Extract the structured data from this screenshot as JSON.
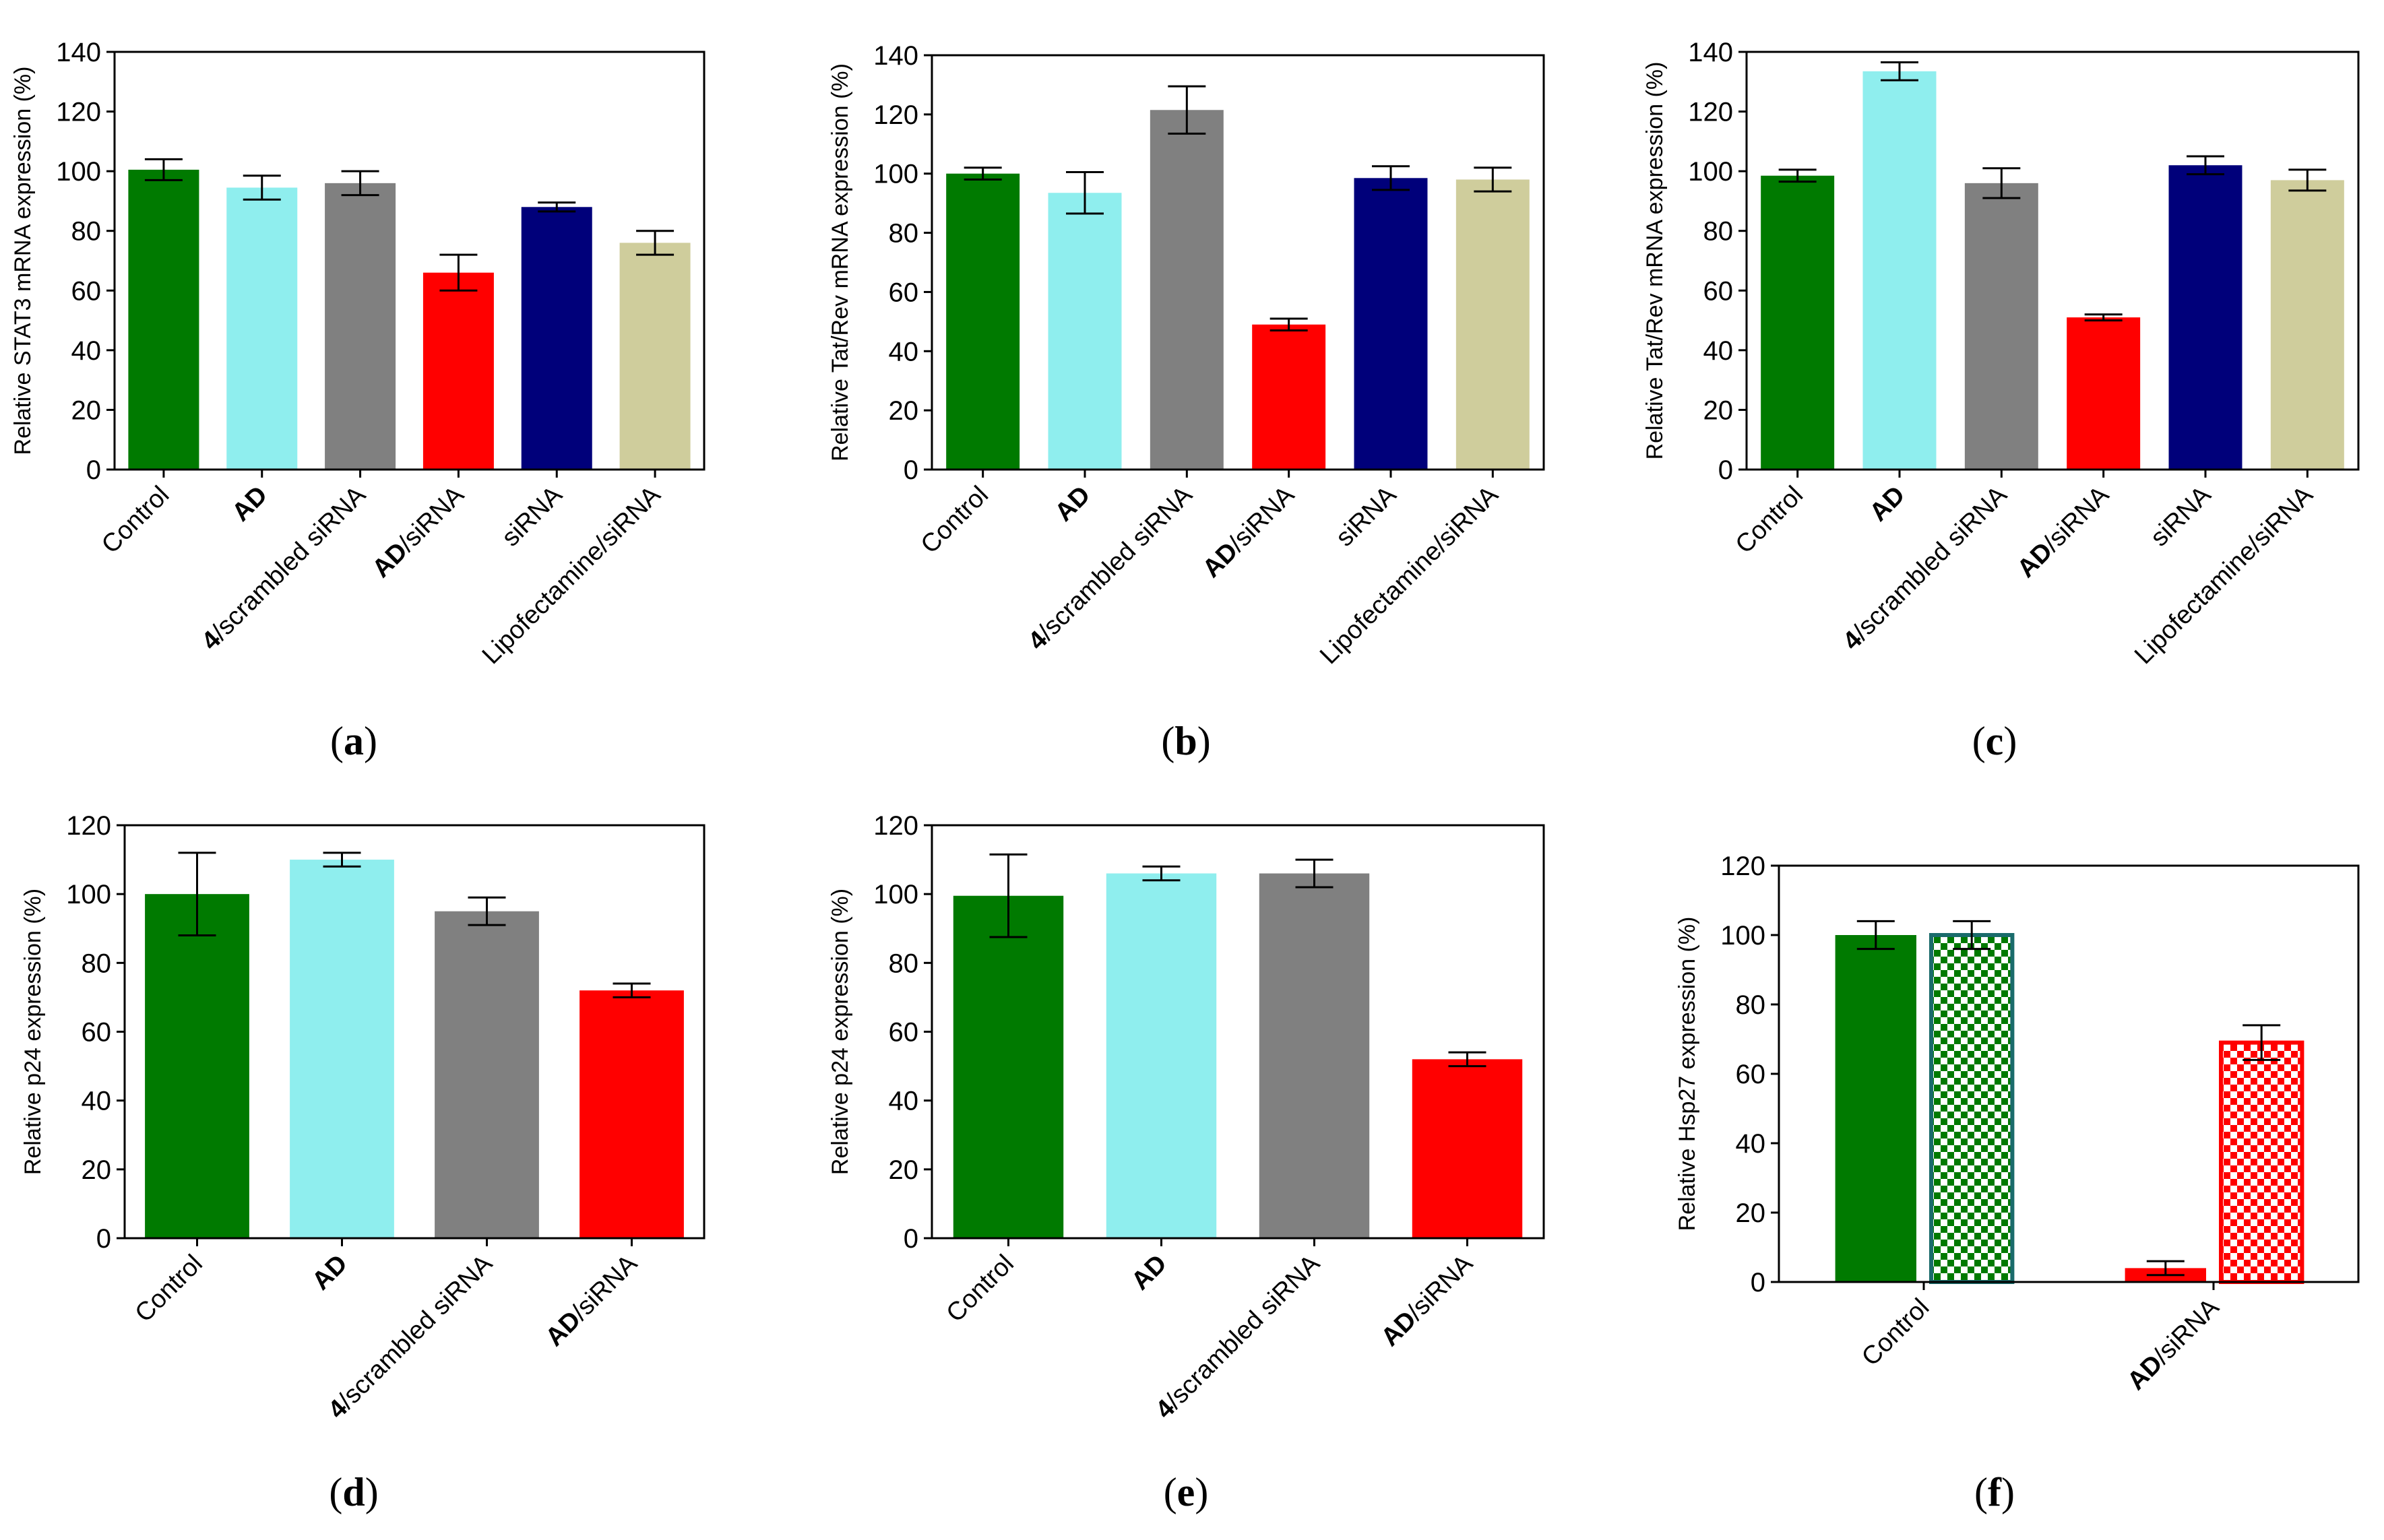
{
  "chart_data": [
    {
      "panel": "a",
      "type": "bar",
      "ylabel": "Relative STAT3 mRNA expression (%)",
      "ylim": [
        0,
        140
      ],
      "yticks": [
        0,
        20,
        40,
        60,
        80,
        100,
        120,
        140
      ],
      "categories": [
        {
          "bold": "",
          "text": "Control"
        },
        {
          "bold": "AD",
          "text": ""
        },
        {
          "bold": "4",
          "text": "/scrambled siRNA"
        },
        {
          "bold": "AD",
          "text": "/siRNA"
        },
        {
          "bold": "",
          "text": "siRNA"
        },
        {
          "bold": "",
          "text": "Lipofectamine/siRNA"
        }
      ],
      "values": [
        100.5,
        94.5,
        96,
        66,
        88,
        76
      ],
      "errors": [
        3.5,
        4,
        4,
        6,
        1.5,
        4
      ],
      "colors": [
        "#007a00",
        "#8feeee",
        "#808080",
        "#ff0000",
        "#00007a",
        "#cfcd9c"
      ],
      "patterns": [
        "solid",
        "solid",
        "solid",
        "solid",
        "solid",
        "solid"
      ],
      "label_prefix": "(",
      "label": "a",
      "label_suffix": ")"
    },
    {
      "panel": "b",
      "type": "bar",
      "ylabel": "Relative Tat/Rev mRNA expression (%)",
      "ylim": [
        0,
        140
      ],
      "yticks": [
        0,
        20,
        40,
        60,
        80,
        100,
        120,
        140
      ],
      "categories": [
        {
          "bold": "",
          "text": "Control"
        },
        {
          "bold": "AD",
          "text": ""
        },
        {
          "bold": "4",
          "text": "/scrambled siRNA"
        },
        {
          "bold": "AD",
          "text": "/siRNA"
        },
        {
          "bold": "",
          "text": "siRNA"
        },
        {
          "bold": "",
          "text": "Lipofectamine/siRNA"
        }
      ],
      "values": [
        100,
        93.5,
        121.5,
        49,
        98.5,
        98
      ],
      "errors": [
        2,
        7,
        8,
        2,
        4,
        4
      ],
      "colors": [
        "#007a00",
        "#8feeee",
        "#808080",
        "#ff0000",
        "#00007a",
        "#cfcd9c"
      ],
      "patterns": [
        "solid",
        "solid",
        "solid",
        "solid",
        "solid",
        "solid"
      ],
      "label_prefix": "(",
      "label": "b",
      "label_suffix": ")"
    },
    {
      "panel": "c",
      "type": "bar",
      "ylabel": "Relative Tat/Rev mRNA expression (%)",
      "ylim": [
        0,
        140
      ],
      "yticks": [
        0,
        20,
        40,
        60,
        80,
        100,
        120,
        140
      ],
      "categories": [
        {
          "bold": "",
          "text": "Control"
        },
        {
          "bold": "AD",
          "text": ""
        },
        {
          "bold": "4",
          "text": "/scrambled siRNA"
        },
        {
          "bold": "AD",
          "text": "/siRNA"
        },
        {
          "bold": "",
          "text": "siRNA"
        },
        {
          "bold": "",
          "text": "Lipofectamine/siRNA"
        }
      ],
      "values": [
        98.5,
        133.5,
        96,
        51,
        102,
        97
      ],
      "errors": [
        2,
        3,
        5,
        1,
        3,
        3.5
      ],
      "colors": [
        "#007a00",
        "#8feeee",
        "#808080",
        "#ff0000",
        "#00007a",
        "#cfcd9c"
      ],
      "patterns": [
        "solid",
        "solid",
        "solid",
        "solid",
        "solid",
        "solid"
      ],
      "label_prefix": "(",
      "label": "c",
      "label_suffix": ")"
    },
    {
      "panel": "d",
      "type": "bar",
      "ylabel": "Relative p24 expression (%)",
      "ylim": [
        0,
        120
      ],
      "yticks": [
        0,
        20,
        40,
        60,
        80,
        100,
        120
      ],
      "categories": [
        {
          "bold": "",
          "text": "Control"
        },
        {
          "bold": "AD",
          "text": ""
        },
        {
          "bold": "4",
          "text": "/scrambled siRNA"
        },
        {
          "bold": "AD",
          "text": "/siRNA"
        }
      ],
      "values": [
        100,
        110,
        95,
        72
      ],
      "errors": [
        12,
        2,
        4,
        2
      ],
      "colors": [
        "#007a00",
        "#8feeee",
        "#808080",
        "#ff0000"
      ],
      "patterns": [
        "solid",
        "solid",
        "solid",
        "solid"
      ],
      "label_prefix": "(",
      "label": "d",
      "label_suffix": ")"
    },
    {
      "panel": "e",
      "type": "bar",
      "ylabel": "Relative p24 expression (%)",
      "ylim": [
        0,
        120
      ],
      "yticks": [
        0,
        20,
        40,
        60,
        80,
        100,
        120
      ],
      "categories": [
        {
          "bold": "",
          "text": "Control"
        },
        {
          "bold": "AD",
          "text": ""
        },
        {
          "bold": "4",
          "text": "/scrambled siRNA"
        },
        {
          "bold": "AD",
          "text": "/siRNA"
        }
      ],
      "values": [
        99.5,
        106,
        106,
        52
      ],
      "errors": [
        12,
        2,
        4,
        2
      ],
      "colors": [
        "#007a00",
        "#8feeee",
        "#808080",
        "#ff0000"
      ],
      "patterns": [
        "solid",
        "solid",
        "solid",
        "solid"
      ],
      "label_prefix": "(",
      "label": "e",
      "label_suffix": ")"
    },
    {
      "panel": "f",
      "type": "bar",
      "ylabel": "Relative Hsp27 expression (%)",
      "ylim": [
        0,
        120
      ],
      "yticks": [
        0,
        20,
        40,
        60,
        80,
        100,
        120
      ],
      "categories": [
        {
          "bold": "",
          "text": "Control"
        },
        {
          "bold": "AD",
          "text": "/siRNA"
        }
      ],
      "series": [
        {
          "name": "solid",
          "values": [
            100,
            4
          ],
          "errors": [
            4,
            2
          ],
          "colors": [
            "#007a00",
            "#ff0000"
          ],
          "pattern": "solid"
        },
        {
          "name": "checkered",
          "values": [
            100,
            69
          ],
          "errors": [
            4,
            5
          ],
          "colors": [
            "#007a00",
            "#ff0000"
          ],
          "pattern": "checker",
          "outline": [
            "#1a6b6b",
            "#ff0000"
          ]
        }
      ],
      "label_prefix": "(",
      "label": "f",
      "label_suffix": ")"
    }
  ]
}
